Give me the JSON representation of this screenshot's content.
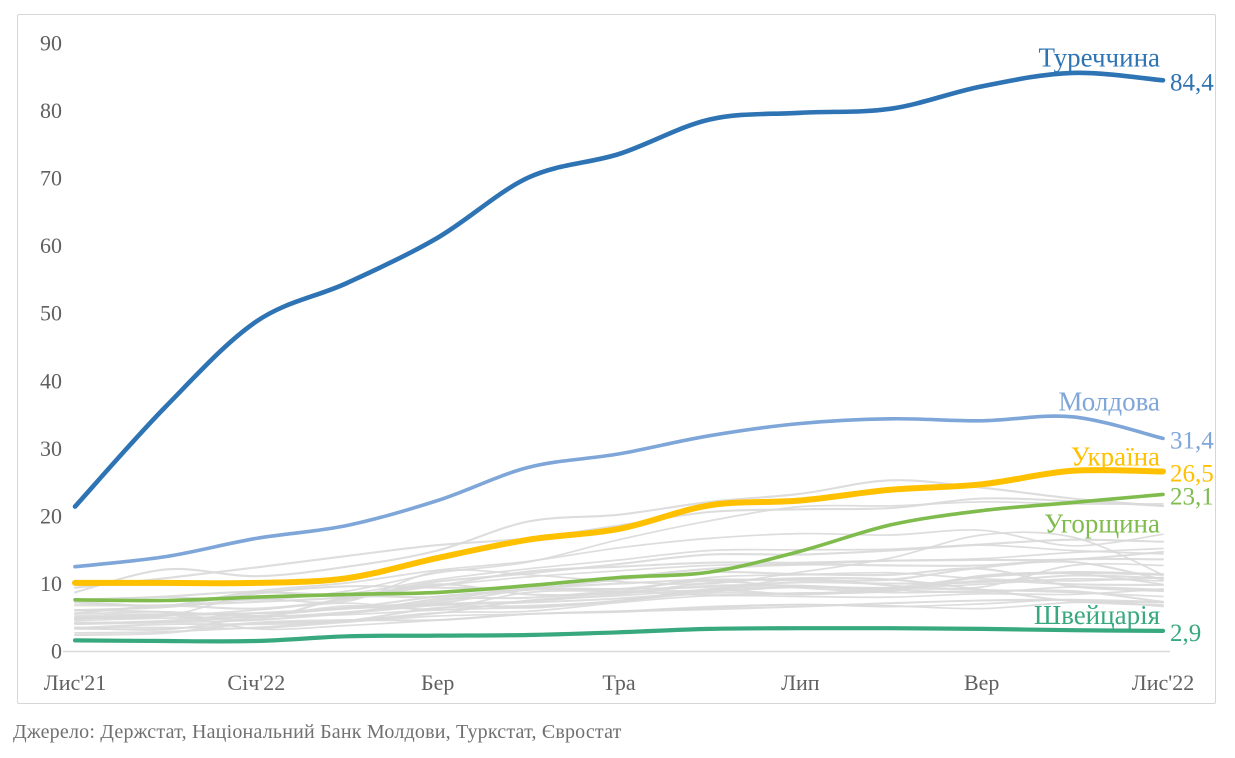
{
  "source_note": "Джерело: Держстат, Національний Банк Молдови, Туркстат, Євростат",
  "chart_data": {
    "type": "line",
    "title": "",
    "xlabel": "",
    "ylabel": "",
    "ylim": [
      0,
      90
    ],
    "y_ticks": [
      0,
      10,
      20,
      30,
      40,
      50,
      60,
      70,
      80,
      90
    ],
    "x_tick_labels": [
      "Лис'21",
      "Січ'22",
      "Бер",
      "Тра",
      "Лип",
      "Вер",
      "Лис'22"
    ],
    "x_points_count": 13,
    "grid": false,
    "legend_position": "end-of-line-labels",
    "axis_color": "#d9d9d9",
    "tick_label_color": "#606060",
    "series": [
      {
        "id": "turkey",
        "name": "Туреччина",
        "end_label": "84,4",
        "color": "#2e73b3",
        "values": [
          21.3,
          36.1,
          48.7,
          54.4,
          61.1,
          70.0,
          73.5,
          78.6,
          79.6,
          80.2,
          83.5,
          85.5,
          84.4
        ]
      },
      {
        "id": "moldova",
        "name": "Молдова",
        "end_label": "31,4",
        "color": "#7ea6d8",
        "values": [
          12.4,
          13.9,
          16.6,
          18.5,
          22.2,
          27.1,
          29.1,
          31.8,
          33.6,
          34.3,
          34.0,
          34.6,
          31.4
        ]
      },
      {
        "id": "ukraine",
        "name": "Україна",
        "end_label": "26,5",
        "color": "#ffc000",
        "values": [
          10.0,
          10.0,
          10.0,
          10.7,
          13.7,
          16.4,
          18.0,
          21.5,
          22.2,
          23.8,
          24.6,
          26.6,
          26.5
        ]
      },
      {
        "id": "hungary",
        "name": "Угорщина",
        "end_label": "23,1",
        "color": "#7fbb4d",
        "values": [
          7.5,
          7.4,
          7.9,
          8.3,
          8.6,
          9.6,
          10.8,
          11.6,
          14.7,
          18.6,
          20.7,
          21.9,
          23.1
        ]
      },
      {
        "id": "switzerland",
        "name": "Швейцарія",
        "end_label": "2,9",
        "color": "#38a97e",
        "values": [
          1.5,
          1.4,
          1.4,
          2.1,
          2.2,
          2.3,
          2.7,
          3.2,
          3.3,
          3.3,
          3.2,
          3.0,
          2.9
        ]
      }
    ],
    "background_series": {
      "color": "#d9d9d9",
      "values": [
        [
          8.6,
          12.0,
          11.0,
          12.4,
          14.8,
          19.1,
          20.1,
          22.0,
          23.2,
          25.2,
          24.1,
          22.5,
          21.4
        ],
        [
          7.5,
          7.9,
          7.5,
          8.8,
          11.5,
          13.1,
          16.4,
          19.2,
          21.3,
          21.4,
          22.0,
          21.7,
          21.7
        ],
        [
          9.3,
          10.7,
          12.3,
          14.0,
          15.6,
          16.6,
          18.5,
          20.5,
          20.9,
          21.1,
          22.5,
          22.1,
          21.4
        ],
        [
          6.0,
          6.6,
          8.8,
          10.0,
          11.9,
          13.2,
          15.2,
          16.6,
          17.3,
          17.1,
          17.8,
          15.5,
          17.2
        ],
        [
          7.4,
          8.0,
          8.7,
          8.1,
          10.2,
          11.4,
          12.8,
          14.2,
          14.2,
          14.8,
          15.7,
          16.4,
          16.1
        ],
        [
          7.3,
          6.6,
          7.7,
          8.4,
          10.5,
          12.1,
          13.4,
          14.8,
          14.9,
          15.0,
          15.6,
          14.8,
          14.3
        ],
        [
          6.7,
          6.7,
          7.2,
          7.9,
          9.6,
          11.7,
          12.4,
          13.0,
          13.0,
          13.3,
          13.4,
          13.5,
          14.6
        ],
        [
          4.8,
          5.1,
          8.4,
          8.3,
          9.6,
          10.9,
          11.8,
          12.6,
          12.8,
          13.3,
          13.6,
          14.5,
          15.1
        ],
        [
          4.7,
          5.2,
          5.5,
          6.3,
          7.3,
          9.6,
          10.8,
          12.1,
          12.7,
          12.6,
          12.6,
          13.5,
          13.5
        ],
        [
          5.9,
          6.4,
          7.6,
          7.3,
          11.7,
          11.2,
          10.2,
          9.9,
          11.6,
          13.7,
          17.1,
          16.8,
          11.2
        ],
        [
          6.0,
          5.7,
          5.1,
          5.5,
          7.6,
          7.8,
          8.7,
          8.2,
          8.5,
          8.8,
          10.9,
          11.6,
          11.3
        ],
        [
          3.4,
          3.1,
          4.9,
          5.3,
          6.0,
          6.4,
          7.4,
          9.1,
          9.6,
          8.9,
          11.1,
          11.4,
          9.8
        ],
        [
          4.1,
          4.2,
          4.5,
          5.5,
          6.7,
          7.1,
          7.7,
          8.7,
          9.4,
          9.3,
          10.9,
          11.5,
          11.2
        ],
        [
          3.9,
          4.2,
          5.1,
          6.2,
          6.8,
          6.3,
          7.3,
          8.5,
          8.4,
          9.1,
          9.4,
          12.6,
          12.6
        ],
        [
          5.5,
          6.6,
          6.2,
          7.6,
          9.8,
          8.3,
          8.5,
          10.0,
          10.7,
          10.5,
          9.0,
          7.3,
          6.7
        ],
        [
          2.6,
          2.8,
          3.4,
          4.4,
          5.5,
          7.4,
          8.1,
          9.0,
          9.4,
          9.3,
          9.8,
          10.6,
          10.3
        ],
        [
          4.0,
          4.4,
          5.5,
          6.3,
          8.0,
          9.1,
          10.5,
          11.6,
          11.3,
          11.2,
          12.1,
          9.5,
          8.8
        ],
        [
          3.2,
          3.2,
          4.1,
          4.4,
          5.6,
          5.8,
          7.1,
          8.1,
          8.0,
          7.9,
          8.4,
          8.3,
          9.1
        ],
        [
          3.3,
          3.9,
          3.9,
          4.4,
          6.3,
          6.6,
          7.3,
          8.9,
          8.3,
          9.0,
          10.3,
          9.8,
          9.7
        ],
        [
          3.4,
          3.4,
          3.3,
          4.2,
          5.1,
          5.4,
          5.8,
          6.5,
          6.8,
          6.6,
          6.2,
          7.1,
          7.1
        ],
        [
          7.1,
          6.6,
          8.5,
          9.5,
          9.3,
          9.3,
          9.9,
          10.5,
          10.4,
          10.5,
          12.3,
          13.1,
          10.5
        ],
        [
          5.4,
          5.7,
          5.0,
          5.7,
          6.9,
          7.3,
          8.3,
          9.6,
          9.6,
          9.0,
          8.6,
          9.4,
          9.0
        ],
        [
          4.6,
          5.4,
          5.5,
          6.2,
          7.0,
          9.0,
          9.1,
          9.4,
          10.1,
          9.9,
          10.1,
          11.1,
          10.7
        ],
        [
          5.1,
          5.3,
          3.2,
          3.7,
          4.5,
          5.4,
          5.7,
          6.3,
          6.8,
          6.5,
          6.9,
          7.5,
          6.5
        ],
        [
          2.3,
          2.6,
          4.1,
          4.5,
          4.5,
          5.4,
          5.8,
          6.1,
          6.5,
          7.0,
          7.4,
          7.5,
          7.2
        ],
        [
          4.4,
          4.8,
          5.0,
          6.6,
          6.2,
          8.6,
          8.8,
          9.0,
          10.6,
          9.6,
          9.0,
          8.6,
          8.0
        ],
        [
          4.8,
          5.3,
          4.6,
          7.8,
          7.9,
          9.0,
          9.1,
          10.3,
          9.3,
          8.6,
          8.8,
          8.8,
          7.2
        ],
        [
          4.9,
          5.1,
          6.0,
          7.0,
          6.0,
          7.4,
          8.7,
          10.8,
          11.2,
          11.5,
          10.6,
          10.3,
          10.8
        ]
      ]
    }
  }
}
